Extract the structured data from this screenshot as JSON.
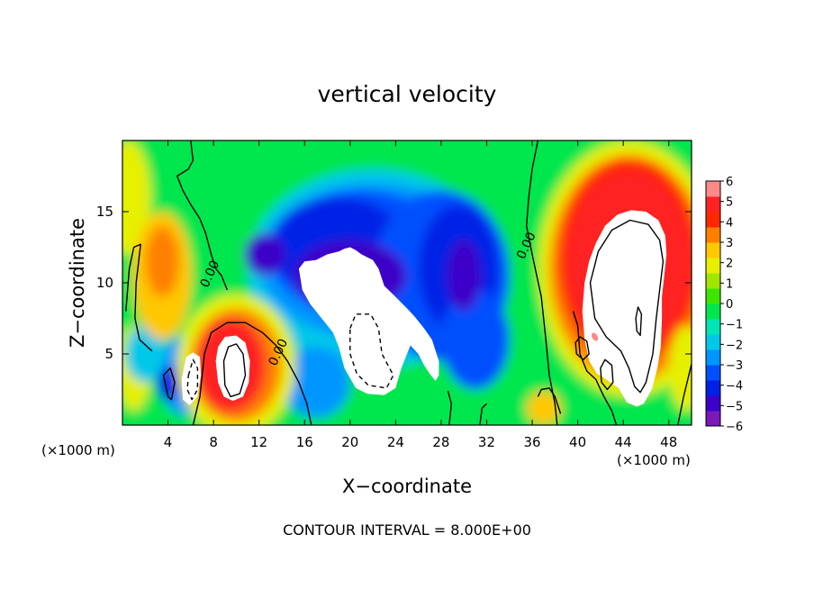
{
  "chart_data": {
    "type": "heatmap",
    "title": "vertical velocity",
    "xlabel": "X−coordinate",
    "ylabel": "Z−coordinate",
    "x_unit_left": "(×1000 m)",
    "x_unit_right": "(×1000 m)",
    "footer": "CONTOUR INTERVAL = 8.000E+00",
    "xlim": [
      0,
      50
    ],
    "ylim": [
      0,
      20
    ],
    "x_ticks": [
      4,
      8,
      12,
      16,
      20,
      24,
      28,
      32,
      36,
      40,
      44,
      48
    ],
    "y_ticks": [
      5,
      10,
      15
    ],
    "colorbar": {
      "min": -6,
      "max": 6,
      "tick_labels": [
        "6",
        "5",
        "4",
        "3",
        "2",
        "1",
        "0",
        "−1",
        "−2",
        "−3",
        "−4",
        "−5",
        "−6"
      ],
      "colors": [
        "#7a18b8",
        "#3d00c8",
        "#0020e6",
        "#0050ff",
        "#0096ff",
        "#00c8e8",
        "#00e6b4",
        "#00e64e",
        "#3ce600",
        "#a0e600",
        "#e6f000",
        "#ffc800",
        "#ff8000",
        "#ff2800",
        "#ff2222",
        "#ff8888"
      ],
      "overflow_color": "#ffffff"
    },
    "contour_labels": [
      {
        "text": "0.00",
        "x": 8.0,
        "y": 10.5
      },
      {
        "text": "0.00",
        "x": 14.0,
        "y": 5.0
      },
      {
        "text": "0.00",
        "x": 35.8,
        "y": 12.5
      }
    ]
  }
}
